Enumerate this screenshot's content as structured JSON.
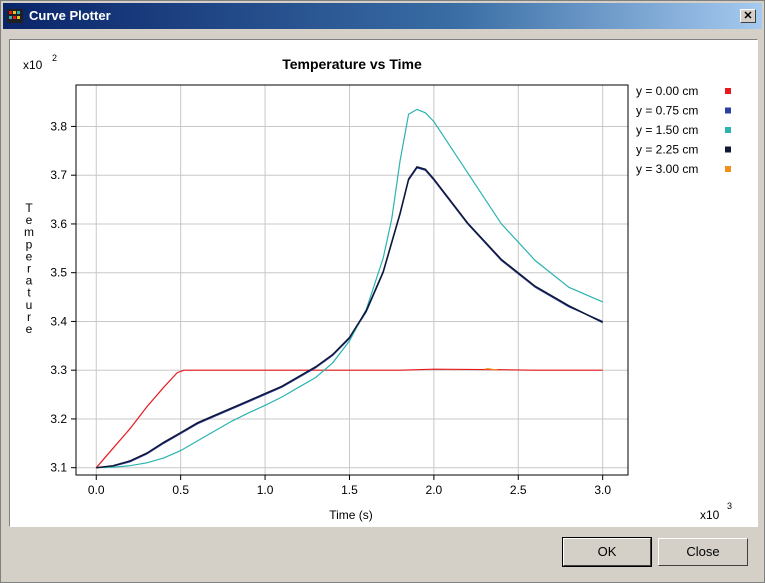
{
  "window": {
    "title": "Curve Plotter",
    "close_glyph": "✕"
  },
  "buttons": {
    "ok": "OK",
    "close": "Close"
  },
  "chart_data": {
    "type": "line",
    "title": "Temperature vs Time",
    "xlabel": "Time (s)",
    "ylabel": "Temperature",
    "x_multiplier": "x10",
    "x_exponent": "3",
    "y_multiplier": "x10",
    "y_exponent": "2",
    "xlim": [
      -0.12,
      3.15
    ],
    "ylim": [
      3.085,
      3.885
    ],
    "x_ticks": [
      0.0,
      0.5,
      1.0,
      1.5,
      2.0,
      2.5,
      3.0
    ],
    "x_tick_labels": [
      "0.0",
      "0.5",
      "1.0",
      "1.5",
      "2.0",
      "2.5",
      "3.0"
    ],
    "y_ticks": [
      3.1,
      3.2,
      3.3,
      3.4,
      3.5,
      3.6,
      3.7,
      3.8
    ],
    "y_tick_labels": [
      "3.1",
      "3.2",
      "3.3",
      "3.4",
      "3.5",
      "3.6",
      "3.7",
      "3.8"
    ],
    "grid": true,
    "legend_placement": "right",
    "series": [
      {
        "name": "y = 0.00 cm",
        "color": "#e8191e",
        "x": [
          0.0,
          0.1,
          0.2,
          0.3,
          0.4,
          0.48,
          0.52,
          0.6,
          1.0,
          1.5,
          1.8,
          2.0,
          2.4,
          2.6,
          3.0
        ],
        "y": [
          3.1,
          3.14,
          3.18,
          3.225,
          3.265,
          3.295,
          3.3,
          3.3,
          3.3,
          3.3,
          3.3,
          3.302,
          3.301,
          3.3,
          3.3
        ]
      },
      {
        "name": "y = 0.75 cm",
        "color": "#2b3fa0",
        "x": [
          0.0,
          0.1,
          0.2,
          0.3,
          0.4,
          0.5,
          0.6,
          0.7,
          0.8,
          0.9,
          1.0,
          1.1,
          1.2,
          1.3,
          1.4,
          1.5,
          1.6,
          1.7,
          1.8,
          1.85,
          1.9,
          1.95,
          2.0,
          2.2,
          2.4,
          2.6,
          2.8,
          3.0
        ],
        "y": [
          3.1,
          3.103,
          3.112,
          3.128,
          3.15,
          3.17,
          3.19,
          3.205,
          3.22,
          3.235,
          3.25,
          3.265,
          3.285,
          3.305,
          3.33,
          3.365,
          3.42,
          3.5,
          3.62,
          3.69,
          3.715,
          3.71,
          3.69,
          3.6,
          3.525,
          3.47,
          3.43,
          3.4
        ]
      },
      {
        "name": "y = 1.50 cm",
        "color": "#2bb3b0",
        "x": [
          0.0,
          0.1,
          0.2,
          0.3,
          0.4,
          0.5,
          0.6,
          0.7,
          0.8,
          0.9,
          1.0,
          1.1,
          1.2,
          1.3,
          1.4,
          1.5,
          1.6,
          1.7,
          1.75,
          1.8,
          1.85,
          1.9,
          1.95,
          2.0,
          2.2,
          2.4,
          2.6,
          2.8,
          3.0
        ],
        "y": [
          3.1,
          3.101,
          3.104,
          3.11,
          3.12,
          3.135,
          3.155,
          3.175,
          3.195,
          3.212,
          3.228,
          3.245,
          3.265,
          3.285,
          3.315,
          3.36,
          3.425,
          3.53,
          3.61,
          3.73,
          3.825,
          3.835,
          3.828,
          3.81,
          3.705,
          3.6,
          3.525,
          3.47,
          3.44
        ]
      },
      {
        "name": "y = 2.25 cm",
        "color": "#101838",
        "x": [
          0.0,
          0.1,
          0.2,
          0.3,
          0.4,
          0.5,
          0.6,
          0.7,
          0.8,
          0.9,
          1.0,
          1.1,
          1.2,
          1.3,
          1.4,
          1.5,
          1.6,
          1.7,
          1.8,
          1.85,
          1.9,
          1.95,
          2.0,
          2.2,
          2.4,
          2.6,
          2.8,
          3.0
        ],
        "y": [
          3.1,
          3.104,
          3.114,
          3.13,
          3.152,
          3.172,
          3.192,
          3.207,
          3.222,
          3.237,
          3.252,
          3.267,
          3.287,
          3.307,
          3.332,
          3.367,
          3.422,
          3.502,
          3.622,
          3.692,
          3.717,
          3.712,
          3.692,
          3.602,
          3.527,
          3.472,
          3.432,
          3.398
        ]
      },
      {
        "name": "y = 3.00 cm",
        "color": "#f0901c",
        "x": [
          2.3,
          2.32,
          2.34,
          2.36,
          2.38
        ],
        "y": [
          3.302,
          3.303,
          3.302,
          3.301,
          3.3
        ]
      }
    ]
  }
}
